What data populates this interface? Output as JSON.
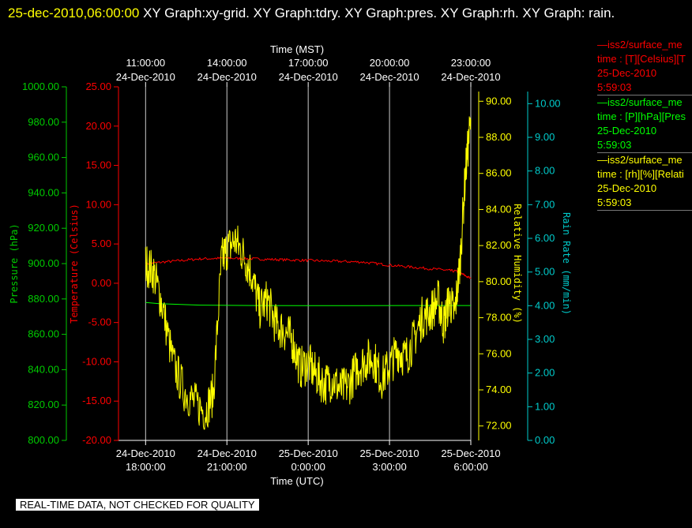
{
  "header": {
    "date": "25-dec-2010,06:00:00",
    "titles": "  XY Graph:xy-grid.  XY Graph:tdry.  XY Graph:pres.  XY Graph:rh.  XY Graph: rain."
  },
  "legend": [
    {
      "line1": "—iss2/surface_me",
      "line2": "time : [T][Celsius][T",
      "line3": "25-Dec-2010",
      "line4": "5:59:03",
      "color": "#ff0000"
    },
    {
      "line1": "—iss2/surface_me",
      "line2": "time : [P][hPa][Pres",
      "line3": "25-Dec-2010",
      "line4": "5:59:03",
      "color": "#00ff00"
    },
    {
      "line1": "—iss2/surface_me",
      "line2": "time : [rh][%][Relati",
      "line3": "25-Dec-2010",
      "line4": "5:59:03",
      "color": "#ffff00"
    }
  ],
  "footer": "REAL-TIME DATA, NOT CHECKED FOR QUALITY",
  "chart_data": {
    "type": "line",
    "x_range": [
      "24-Dec-2010 17:00:00 UTC",
      "25-Dec-2010 06:00:00 UTC"
    ],
    "xlabel_top": "Time (MST)",
    "xlabel_bottom": "Time (UTC)",
    "x_ticks_top": [
      {
        "date": "24-Dec-2010",
        "time": "11:00:00",
        "utc_hour": 18
      },
      {
        "date": "24-Dec-2010",
        "time": "14:00:00",
        "utc_hour": 21
      },
      {
        "date": "24-Dec-2010",
        "time": "17:00:00",
        "utc_hour": 24
      },
      {
        "date": "24-Dec-2010",
        "time": "20:00:00",
        "utc_hour": 27
      },
      {
        "date": "24-Dec-2010",
        "time": "23:00:00",
        "utc_hour": 30
      }
    ],
    "x_ticks_bottom": [
      {
        "date": "24-Dec-2010",
        "time": "18:00:00",
        "utc_hour": 18
      },
      {
        "date": "24-Dec-2010",
        "time": "21:00:00",
        "utc_hour": 21
      },
      {
        "date": "25-Dec-2010",
        "time": "0:00:00",
        "utc_hour": 24
      },
      {
        "date": "25-Dec-2010",
        "time": "3:00:00",
        "utc_hour": 27
      },
      {
        "date": "25-Dec-2010",
        "time": "6:00:00",
        "utc_hour": 30
      }
    ],
    "axes": {
      "pressure": {
        "label": "Pressure (hPa)",
        "range": [
          800,
          1000
        ],
        "ticks": [
          "800.00",
          "820.00",
          "840.00",
          "860.00",
          "880.00",
          "900.00",
          "920.00",
          "940.00",
          "960.00",
          "980.00",
          "1000.00"
        ],
        "color": "#00cc00"
      },
      "temperature": {
        "label": "Temperature (Celsius)",
        "range": [
          -20,
          25
        ],
        "ticks": [
          "-20.00",
          "-15.00",
          "-10.00",
          "-5.00",
          "0.00",
          "5.00",
          "10.00",
          "15.00",
          "20.00",
          "25.00"
        ],
        "color": "#ff0000"
      },
      "humidity": {
        "label": "Relative Humidity (%)",
        "range": [
          71.2,
          90.8
        ],
        "ticks": [
          "72.00",
          "74.00",
          "76.00",
          "78.00",
          "80.00",
          "82.00",
          "84.00",
          "86.00",
          "88.00",
          "90.00"
        ],
        "color": "#ffff00"
      },
      "rain": {
        "label": "Rain Rate (mm/min)",
        "range": [
          0,
          10.5
        ],
        "ticks": [
          "0.00",
          "1.00",
          "2.00",
          "3.00",
          "4.00",
          "5.00",
          "6.00",
          "7.00",
          "8.00",
          "9.00",
          "10.00"
        ],
        "color": "#00cccc"
      }
    },
    "series": [
      {
        "name": "Temperature",
        "axis": "temperature",
        "color": "#ff0000",
        "x": [
          18,
          19,
          20,
          21,
          22,
          23,
          24,
          25,
          26,
          27,
          28,
          29,
          29.5,
          30
        ],
        "y": [
          2.5,
          2.8,
          3.1,
          3.2,
          3.1,
          3.0,
          2.9,
          2.8,
          2.7,
          2.3,
          2.0,
          1.7,
          1.5,
          0.6
        ]
      },
      {
        "name": "Pressure",
        "axis": "pressure",
        "color": "#00ff00",
        "x": [
          18,
          18.5,
          20,
          22,
          24,
          26,
          28,
          30
        ],
        "y": [
          878,
          877.3,
          876.5,
          876.3,
          876.2,
          876.2,
          876.3,
          876.3
        ]
      },
      {
        "name": "Relative Humidity",
        "axis": "humidity",
        "color": "#ffff00",
        "x": [
          18.0,
          18.3,
          18.6,
          19.0,
          19.4,
          19.8,
          20.2,
          20.5,
          20.8,
          21.0,
          21.3,
          21.6,
          21.9,
          22.2,
          22.5,
          22.8,
          23.1,
          23.4,
          23.7,
          24.0,
          24.3,
          24.6,
          24.9,
          25.2,
          25.5,
          25.8,
          26.1,
          26.4,
          26.7,
          27.0,
          27.3,
          27.6,
          27.9,
          28.2,
          28.5,
          28.8,
          29.0,
          29.2,
          29.4,
          29.6,
          29.8,
          30.0
        ],
        "y": [
          81.0,
          80.5,
          78.8,
          75.6,
          74.0,
          73.3,
          72.8,
          73.8,
          81.2,
          81.8,
          82.3,
          81.5,
          80.5,
          78.5,
          79.0,
          77.6,
          77.3,
          76.8,
          75.2,
          75.5,
          74.8,
          74.3,
          74.6,
          74.0,
          74.3,
          75.2,
          75.6,
          75.8,
          74.6,
          75.3,
          76.2,
          75.8,
          76.8,
          78.0,
          78.3,
          79.0,
          77.6,
          79.0,
          78.2,
          81.0,
          86.0,
          89.0
        ]
      }
    ],
    "grid": true,
    "legend_position": "right"
  }
}
